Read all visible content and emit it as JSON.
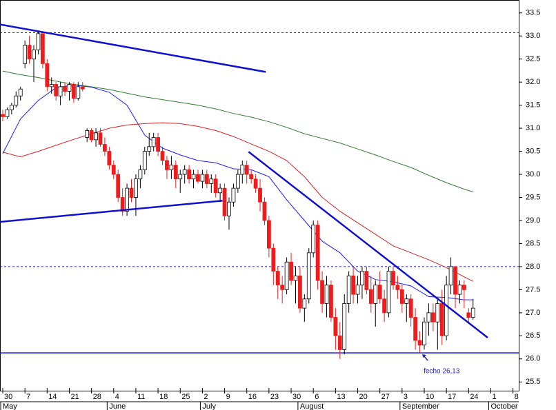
{
  "chart_data": {
    "type": "candlestick",
    "xlim": [
      -0.62,
      116.3
    ],
    "ylim": [
      25.31,
      33.78
    ],
    "yticks": [
      25.5,
      {
        "value": 26,
        "label": "26.0"
      },
      26.5,
      {
        "value": 27,
        "label": "27.0"
      },
      27.5,
      {
        "value": 28,
        "label": "28.0"
      },
      28.5,
      {
        "value": 29,
        "label": "29.0"
      },
      29.5,
      {
        "value": 30,
        "label": "30.0"
      },
      30.5,
      {
        "value": 31,
        "label": "31.0"
      },
      31.5,
      {
        "value": 32,
        "label": "32.0"
      },
      32.5,
      {
        "value": 33,
        "label": "33.0"
      },
      33.5
    ],
    "xticks": [
      {
        "value": 0,
        "label": "30"
      },
      {
        "value": 5,
        "label": "7"
      },
      {
        "value": 10,
        "label": "14"
      },
      {
        "value": 15,
        "label": "21"
      },
      {
        "value": 20,
        "label": "28"
      },
      {
        "value": 25,
        "label": "4"
      },
      {
        "value": 30,
        "label": "11"
      },
      {
        "value": 35,
        "label": "18"
      },
      {
        "value": 40,
        "label": "25"
      },
      {
        "value": 45,
        "label": "2"
      },
      {
        "value": 50,
        "label": "9"
      },
      {
        "value": 55,
        "label": "16"
      },
      {
        "value": 60,
        "label": "23"
      },
      {
        "value": 65,
        "label": "30"
      },
      {
        "value": 70,
        "label": "6"
      },
      {
        "value": 75,
        "label": "13"
      },
      {
        "value": 80,
        "label": "20"
      },
      {
        "value": 85,
        "label": "27"
      },
      {
        "value": 90,
        "label": "3"
      },
      {
        "value": 95,
        "label": "10"
      },
      {
        "value": 100,
        "label": "17"
      },
      {
        "value": 105,
        "label": "24"
      },
      {
        "value": 110,
        "label": "1"
      },
      {
        "value": 115,
        "label": "8"
      }
    ],
    "month_ticks": [
      {
        "value": 0,
        "label": "May"
      },
      {
        "value": 24,
        "label": "June"
      },
      {
        "value": 45,
        "label": "July"
      },
      {
        "value": 67,
        "label": "August"
      },
      {
        "value": 90,
        "label": "September"
      },
      {
        "value": 110,
        "label": "October"
      }
    ],
    "up_color": "#ffffff",
    "down_color": "#ee1c1c",
    "candles": {
      "x": [
        0,
        1,
        2,
        3,
        4,
        5,
        6,
        7,
        8,
        9,
        10,
        11,
        12,
        13,
        14,
        15,
        16,
        17,
        18,
        19,
        20,
        21,
        22,
        23,
        24,
        25,
        26,
        27,
        28,
        29,
        30,
        31,
        32,
        33,
        34,
        35,
        36,
        37,
        38,
        39,
        40,
        41,
        42,
        43,
        44,
        45,
        46,
        47,
        48,
        49,
        50,
        51,
        52,
        53,
        54,
        55,
        56,
        57,
        58,
        59,
        60,
        61,
        62,
        63,
        64,
        65,
        66,
        67,
        68,
        69,
        70,
        71,
        72,
        73,
        74,
        75,
        76,
        77,
        78,
        79,
        80,
        81,
        82,
        83,
        84,
        85,
        86,
        87,
        88,
        89,
        90,
        91,
        92,
        93,
        94,
        95,
        96,
        97,
        98,
        99,
        100,
        101,
        102,
        103,
        104,
        105,
        106
      ],
      "open": [
        31.3,
        31.25,
        31.4,
        31.5,
        31.7,
        32.4,
        32.8,
        32.5,
        32.7,
        33.05,
        32.4,
        31.9,
        31.95,
        31.7,
        31.9,
        31.8,
        31.95,
        31.65,
        31.9,
        30.8,
        30.95,
        30.75,
        30.9,
        30.65,
        30.5,
        30.2,
        30,
        29.5,
        29.2,
        29.7,
        29.5,
        29.9,
        30.1,
        30.5,
        30.6,
        30.8,
        30.5,
        30.3,
        30.1,
        30.2,
        29.9,
        30,
        30.1,
        29.9,
        30,
        29.85,
        30,
        29.8,
        29.9,
        29.6,
        29.7,
        29.1,
        29.4,
        29.7,
        30,
        30.2,
        30,
        29.9,
        29.7,
        29.4,
        29,
        28.4,
        27.9,
        27.6,
        27.5,
        28.1,
        27.7,
        27.8,
        27.1,
        27.3,
        28.3,
        28.9,
        27.7,
        27.2,
        27.6,
        26.9,
        26.5,
        26.2,
        27.2,
        27.8,
        27.4,
        27.6,
        27.9,
        27.5,
        27.2,
        27.6,
        27.3,
        27,
        27.9,
        27.6,
        27.5,
        27.2,
        27.3,
        26.9,
        26.4,
        26.3,
        26.8,
        27,
        26.8,
        27.2,
        26.5,
        27.6,
        28,
        27.4,
        27.6,
        27,
        26.9
      ],
      "high": [
        31.4,
        31.45,
        31.55,
        31.8,
        31.9,
        32.9,
        33,
        32.8,
        33.1,
        33.1,
        32.5,
        32.1,
        32,
        32,
        32,
        32,
        32,
        32,
        32,
        31,
        31,
        31,
        31,
        30.8,
        30.6,
        30.3,
        30.1,
        29.7,
        29.8,
        29.9,
        30,
        30.2,
        30.6,
        30.9,
        30.9,
        30.9,
        30.6,
        30.4,
        30.4,
        30.3,
        30.1,
        30.2,
        30.2,
        30.1,
        30.1,
        30.1,
        30.1,
        30,
        30,
        29.8,
        29.8,
        29.5,
        29.8,
        30.1,
        30.3,
        30.3,
        30.1,
        30,
        29.9,
        29.5,
        29.1,
        28.5,
        28,
        27.8,
        28.2,
        28.3,
        28,
        28,
        27.4,
        28.4,
        29,
        29,
        27.9,
        27.8,
        27.7,
        27.1,
        26.8,
        27.4,
        27.9,
        28,
        27.8,
        28,
        28,
        27.8,
        27.7,
        27.9,
        27.5,
        28,
        28,
        27.8,
        27.6,
        27.4,
        27.4,
        27.1,
        26.6,
        26.9,
        27.2,
        27.2,
        27.3,
        27.5,
        27.8,
        28.2,
        28,
        27.7,
        27.7,
        27.1,
        27.3
      ],
      "low": [
        31.15,
        31.2,
        31.3,
        31.45,
        31.6,
        32.3,
        32.4,
        32,
        32.6,
        32.3,
        31.8,
        31.75,
        31.6,
        31.5,
        31.7,
        31.6,
        31.55,
        31.6,
        31.8,
        30.7,
        30.7,
        30.6,
        30.6,
        30.4,
        30.1,
        29.9,
        29.4,
        29.1,
        29.1,
        29.4,
        29.1,
        29.7,
        30,
        30.4,
        30.5,
        30.4,
        30.2,
        29.9,
        29.9,
        29.7,
        29.6,
        29.8,
        29.8,
        29.7,
        29.8,
        29.7,
        29.7,
        29.6,
        29.5,
        29.4,
        29,
        28.8,
        29.3,
        29.6,
        29.8,
        29.8,
        29.8,
        29.6,
        29.2,
        28.9,
        28.2,
        27.6,
        27.3,
        27.2,
        27.4,
        27.6,
        27.2,
        27,
        26.8,
        27.2,
        28.2,
        27.5,
        27,
        26.9,
        26.8,
        26.2,
        26,
        26.1,
        27,
        27.2,
        27.2,
        27.3,
        27.4,
        27,
        26.7,
        27.2,
        26.8,
        26.9,
        27.5,
        27.3,
        27,
        26.8,
        26.7,
        26.2,
        26.13,
        26.2,
        26.5,
        26.6,
        26.2,
        26.3,
        26.4,
        27.4,
        27.1,
        27.2,
        27.1,
        26.8,
        26.85
      ],
      "close": [
        31.25,
        31.4,
        31.5,
        31.7,
        31.85,
        32.8,
        32.5,
        32.7,
        33.05,
        32.4,
        31.9,
        31.95,
        31.7,
        31.9,
        31.8,
        31.95,
        31.65,
        31.9,
        31.85,
        30.95,
        30.75,
        30.9,
        30.65,
        30.5,
        30.2,
        30,
        29.5,
        29.2,
        29.7,
        29.5,
        29.9,
        30.1,
        30.5,
        30.6,
        30.8,
        30.5,
        30.3,
        30.1,
        30.2,
        29.9,
        30,
        30.1,
        29.9,
        30,
        29.85,
        30,
        29.8,
        29.9,
        29.6,
        29.7,
        29.1,
        29.4,
        29.7,
        30,
        30.2,
        30,
        29.9,
        29.7,
        29.4,
        29,
        28.4,
        27.9,
        27.6,
        27.5,
        28.1,
        27.7,
        27.8,
        27.1,
        27.3,
        28.3,
        28.9,
        27.7,
        27.2,
        27.6,
        26.9,
        26.5,
        26.2,
        27.2,
        27.8,
        27.4,
        27.6,
        27.9,
        27.5,
        27.2,
        27.6,
        27.3,
        27,
        27.9,
        27.6,
        27.5,
        27.2,
        27.3,
        26.9,
        26.4,
        26.3,
        26.8,
        27,
        26.8,
        27.2,
        26.5,
        27.6,
        28,
        27.4,
        27.6,
        27.5,
        26.9,
        27.1
      ]
    },
    "series": [
      {
        "color": "#1a1aff",
        "x": [
          0,
          4,
          8,
          12,
          16,
          20,
          24,
          28,
          32,
          36,
          40,
          44,
          48,
          52,
          56,
          60,
          64,
          68,
          72,
          76,
          80,
          84,
          88,
          92,
          96,
          100,
          104,
          106
        ],
        "values": [
          30.45,
          31.2,
          31.6,
          31.88,
          31.94,
          31.89,
          31.78,
          31.5,
          30.85,
          30.57,
          30.42,
          30.3,
          30.25,
          30.12,
          30.1,
          29.95,
          29.45,
          29,
          28.55,
          28.3,
          27.9,
          27.72,
          27.67,
          27.58,
          27.35,
          27.33,
          27.28,
          27.28
        ]
      },
      {
        "color": "#e02020",
        "x": [
          0,
          4,
          8,
          12,
          16,
          20,
          24,
          28,
          32,
          36,
          40,
          44,
          48,
          52,
          56,
          60,
          64,
          68,
          72,
          76,
          80,
          84,
          88,
          92,
          96,
          100,
          104,
          106
        ],
        "values": [
          30.48,
          30.38,
          30.5,
          30.63,
          30.76,
          30.88,
          31,
          31.07,
          31.1,
          31.12,
          31.1,
          31.04,
          30.95,
          30.82,
          30.66,
          30.5,
          30.3,
          29.95,
          29.5,
          29.2,
          28.95,
          28.7,
          28.45,
          28.3,
          28.15,
          27.98,
          27.78,
          27.68
        ]
      },
      {
        "color": "#2e7d2e",
        "x": [
          0,
          4,
          8,
          12,
          16,
          20,
          24,
          28,
          32,
          36,
          40,
          44,
          48,
          52,
          56,
          60,
          64,
          68,
          72,
          76,
          80,
          84,
          88,
          92,
          96,
          100,
          104,
          106
        ],
        "values": [
          32.24,
          32.16,
          32.1,
          32.02,
          31.95,
          31.9,
          31.84,
          31.76,
          31.68,
          31.62,
          31.56,
          31.5,
          31.42,
          31.32,
          31.24,
          31.14,
          31.02,
          30.88,
          30.78,
          30.68,
          30.55,
          30.42,
          30.28,
          30.15,
          29.98,
          29.82,
          29.68,
          29.62
        ]
      }
    ],
    "trend_color": "#1010d0",
    "trendlines": [
      {
        "x": [
          -0.62,
          59.3
        ],
        "y": [
          33.25,
          32.22
        ]
      },
      {
        "x": [
          -0.62,
          49.5
        ],
        "y": [
          28.97,
          29.43
        ]
      },
      {
        "x": [
          55.4,
          109.3
        ],
        "y": [
          30.49,
          26.46
        ]
      }
    ],
    "hlines": [
      {
        "value": 33.07,
        "style": "dashed",
        "color": "#2020a0"
      },
      {
        "value": 28,
        "style": "dashed",
        "color": "#2020a0"
      },
      {
        "value": 26.13,
        "style": "solid",
        "color": "#1010d0"
      }
    ],
    "annotation": {
      "text": "fecho 26,13",
      "x": 94.4,
      "y": 26.13,
      "color": "#2020c0"
    }
  }
}
